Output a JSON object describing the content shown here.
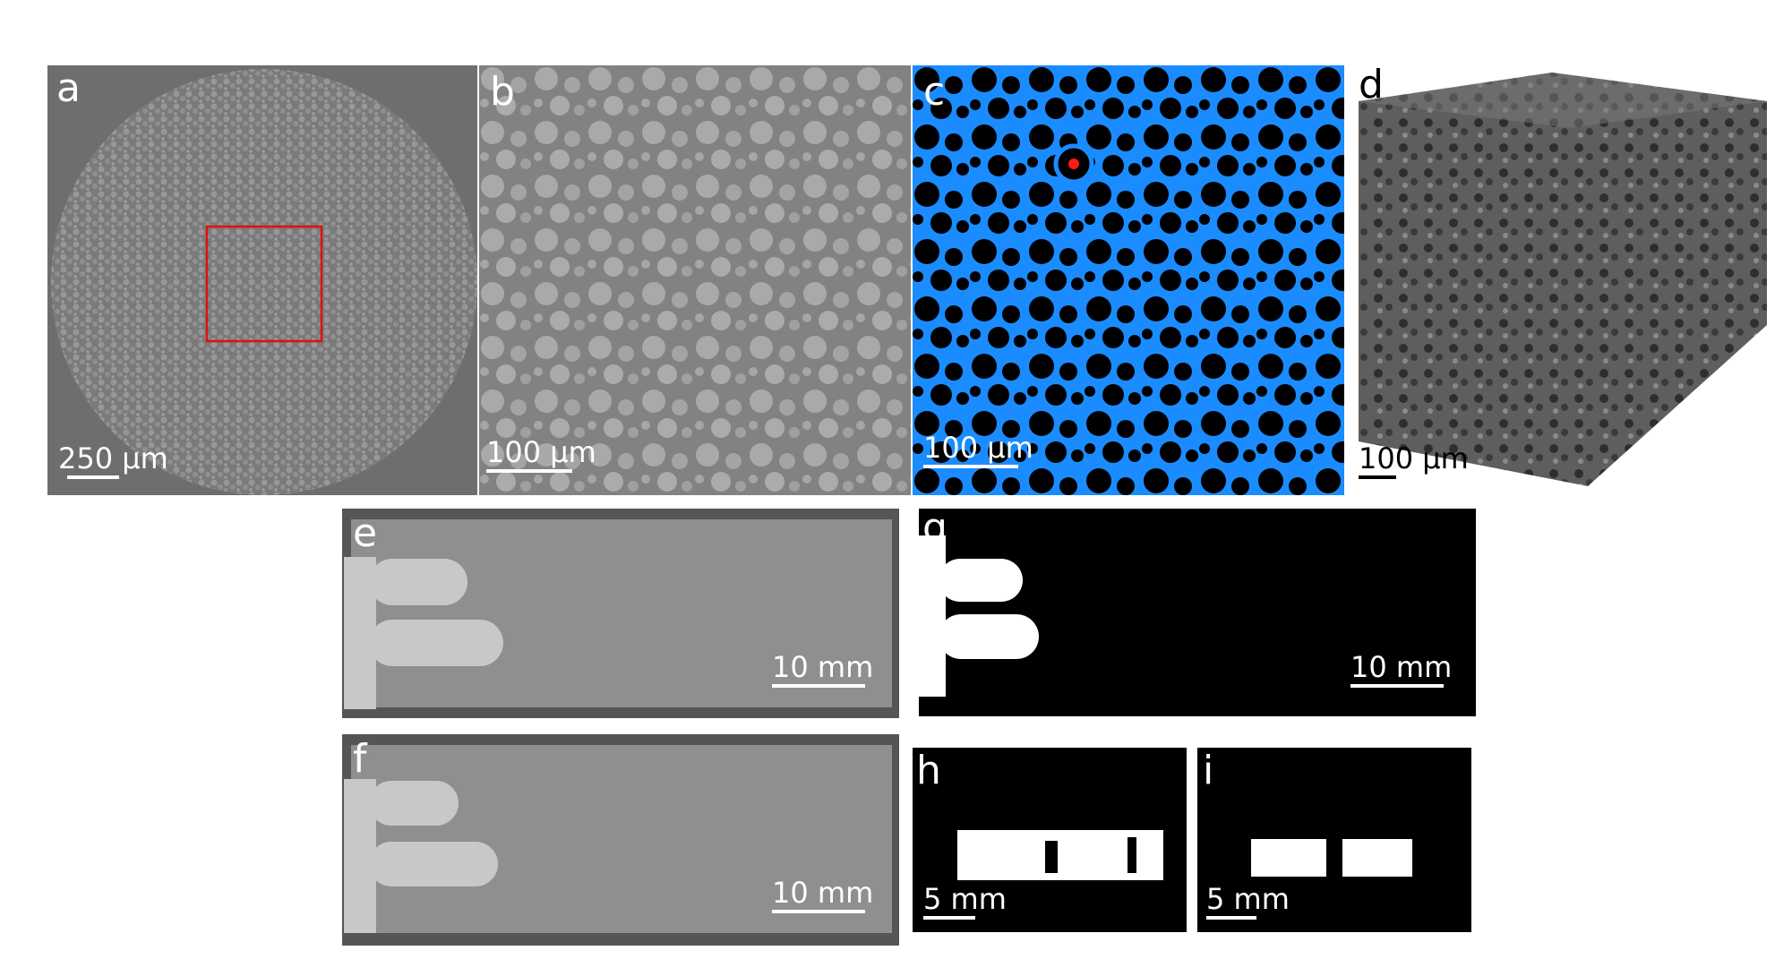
{
  "panels": {
    "a": {
      "letter": "a",
      "scale_label": "250 µm"
    },
    "b": {
      "letter": "b",
      "scale_label": "100 µm"
    },
    "c": {
      "letter": "c",
      "scale_label": "100 µm"
    },
    "d": {
      "letter": "d",
      "scale_label": "100 µm"
    },
    "e": {
      "letter": "e",
      "scale_label": "10 mm"
    },
    "f": {
      "letter": "f",
      "scale_label": "10 mm"
    },
    "g": {
      "letter": "g",
      "scale_label": "10 mm"
    },
    "h": {
      "letter": "h",
      "scale_label": "5 mm"
    },
    "i": {
      "letter": "i",
      "scale_label": "5 mm"
    }
  },
  "colors": {
    "ct_background": "#6e6e6e",
    "particle": "#9a9a9a",
    "segmented_pore": "#1a8cff",
    "segmented_particle": "#000000",
    "highlight_box": "#e01010",
    "highlight_dot": "#ff1a1a",
    "render_gray": "#5a5a5a"
  }
}
